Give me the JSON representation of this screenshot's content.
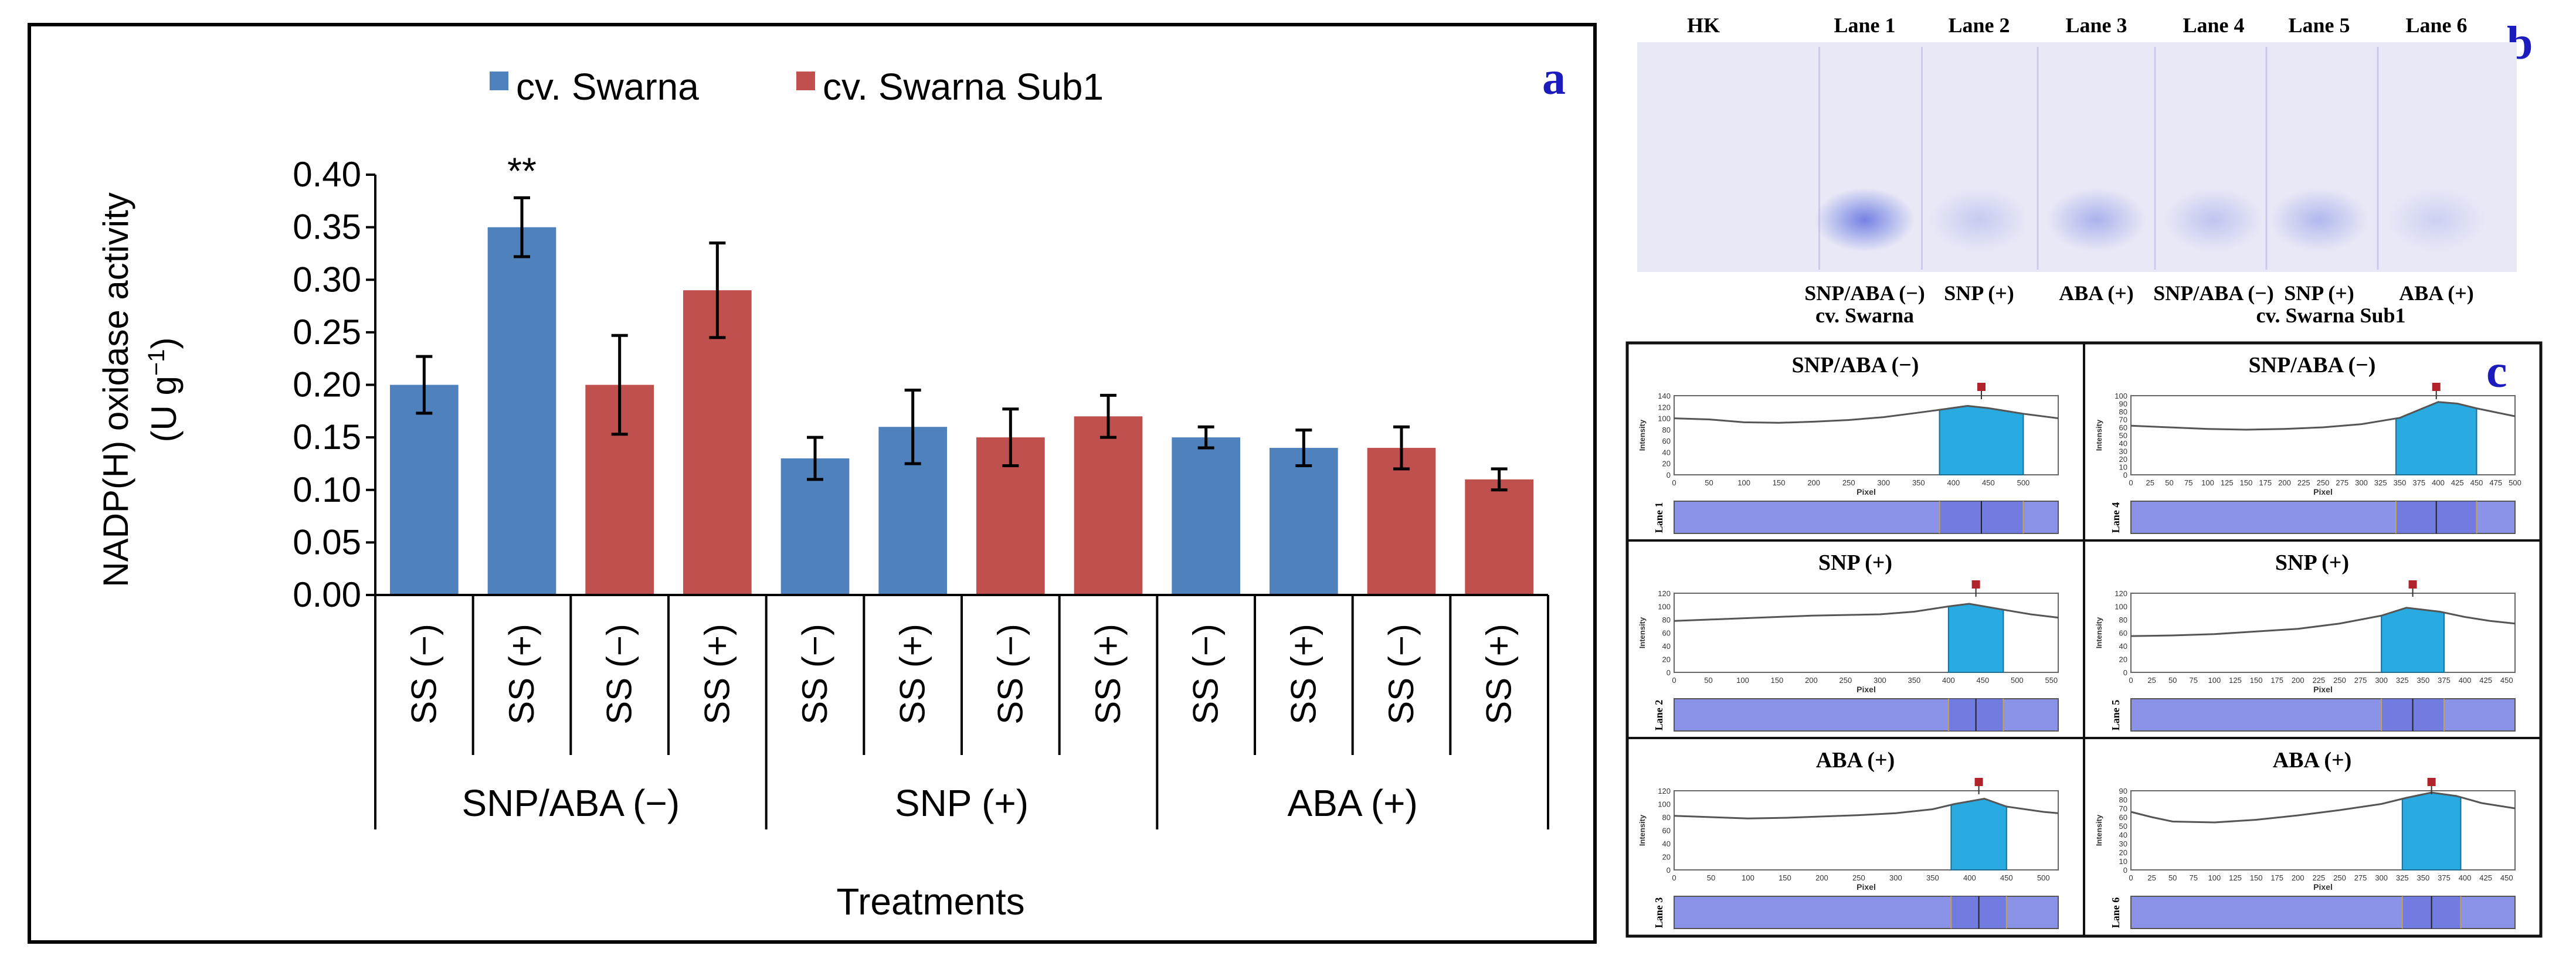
{
  "colors": {
    "swarna": "#4f81bd",
    "sub1": "#c0504d",
    "panel_label": "#1c1cbe",
    "gel_bg": "#e8e9f6",
    "gel_band": "#5f6fe0",
    "profile_fill": "#29abe2",
    "strip_bg": "#8a93e8",
    "marker": "#b0232a"
  },
  "chart_data": [
    {
      "type": "bar",
      "panel": "a",
      "title": "",
      "legend": [
        "cv. Swarna",
        "cv. Swarna Sub1"
      ],
      "legend_position": "top",
      "ylabel_line1": "NADP(H) oxidase activity",
      "ylabel_line2": "(U g",
      "ylabel_sup": "−1",
      "ylabel_close": ")",
      "xlabel": "Treatments",
      "ylim": [
        0,
        0.4
      ],
      "yticks": [
        "0.00",
        "0.05",
        "0.10",
        "0.15",
        "0.20",
        "0.25",
        "0.30",
        "0.35",
        "0.40"
      ],
      "categories": [
        "SS (−)",
        "SS (+)",
        "SS (−)",
        "SS (+)",
        "SS (−)",
        "SS (+)",
        "SS (−)",
        "SS (+)",
        "SS (−)",
        "SS (+)",
        "SS (−)",
        "SS (+)"
      ],
      "groups": [
        "SNP/ABA (−)",
        "SNP (+)",
        "ABA (+)"
      ],
      "series_of_bar": [
        "cv. Swarna",
        "cv. Swarna",
        "cv. Swarna Sub1",
        "cv. Swarna Sub1",
        "cv. Swarna",
        "cv. Swarna",
        "cv. Swarna Sub1",
        "cv. Swarna Sub1",
        "cv. Swarna",
        "cv. Swarna",
        "cv. Swarna Sub1",
        "cv. Swarna Sub1"
      ],
      "values": [
        0.2,
        0.35,
        0.2,
        0.29,
        0.13,
        0.16,
        0.15,
        0.17,
        0.15,
        0.14,
        0.14,
        0.11
      ],
      "errors": [
        0.027,
        0.028,
        0.047,
        0.045,
        0.02,
        0.035,
        0.027,
        0.02,
        0.01,
        0.017,
        0.02,
        0.01
      ],
      "annotations": [
        {
          "bar": 1,
          "text": "**"
        }
      ]
    },
    {
      "type": "other",
      "panel": "b",
      "description_kind": "gel",
      "lane_headers": [
        "HK",
        "Lane 1",
        "Lane 2",
        "Lane 3",
        "Lane 4",
        "Lane 5",
        "Lane 6"
      ],
      "lane_labels": [
        "SNP/ABA (−)",
        "SNP (+)",
        "ABA (+)",
        "SNP/ABA (−)",
        "SNP (+)",
        "ABA (+)"
      ],
      "cultivar_labels": [
        "cv. Swarna",
        "cv. Swarna Sub1"
      ],
      "band_intensity": [
        0.85,
        0.25,
        0.45,
        0.3,
        0.4,
        0.2
      ]
    },
    {
      "type": "line",
      "panel": "c",
      "ylabel": "Intensity",
      "xlabel": "Pixel",
      "plots": [
        {
          "title": "SNP/ABA (−)",
          "lane": "Lane 1",
          "yticks": [
            "0",
            "20",
            "40",
            "60",
            "80",
            "100",
            "120",
            "140"
          ],
          "xticks": [
            "0",
            "50",
            "100",
            "150",
            "200",
            "250",
            "300",
            "350",
            "400",
            "450",
            "500"
          ],
          "xmax": 550,
          "ymax": 140,
          "x": [
            0,
            50,
            100,
            150,
            200,
            250,
            300,
            350,
            380,
            420,
            450,
            500,
            550
          ],
          "y": [
            100,
            98,
            93,
            92,
            94,
            97,
            102,
            110,
            115,
            122,
            118,
            108,
            100
          ],
          "peak_from": 380,
          "peak_to": 500
        },
        {
          "title": "SNP/ABA (−)",
          "lane": "Lane 4",
          "yticks": [
            "0",
            "10",
            "20",
            "30",
            "40",
            "50",
            "60",
            "70",
            "80",
            "90",
            "100"
          ],
          "xticks": [
            "0",
            "25",
            "50",
            "75",
            "100",
            "125",
            "150",
            "175",
            "200",
            "225",
            "250",
            "275",
            "300",
            "325",
            "350",
            "375",
            "400",
            "425",
            "450",
            "475",
            "500"
          ],
          "xmax": 500,
          "ymax": 100,
          "x": [
            0,
            50,
            100,
            150,
            200,
            250,
            300,
            350,
            375,
            400,
            425,
            450,
            500
          ],
          "y": [
            62,
            60,
            58,
            57,
            58,
            60,
            64,
            72,
            82,
            92,
            90,
            84,
            74
          ],
          "peak_from": 345,
          "peak_to": 450
        },
        {
          "title": "SNP (+)",
          "lane": "Lane 2",
          "yticks": [
            "0",
            "20",
            "40",
            "60",
            "80",
            "100",
            "120"
          ],
          "xticks": [
            "0",
            "50",
            "100",
            "150",
            "200",
            "250",
            "300",
            "350",
            "400",
            "450",
            "500",
            "550"
          ],
          "xmax": 560,
          "ymax": 120,
          "x": [
            0,
            50,
            100,
            150,
            200,
            250,
            300,
            350,
            400,
            430,
            480,
            520,
            560
          ],
          "y": [
            78,
            80,
            82,
            84,
            86,
            87,
            88,
            92,
            100,
            104,
            95,
            88,
            83
          ],
          "peak_from": 400,
          "peak_to": 480
        },
        {
          "title": "SNP (+)",
          "lane": "Lane 5",
          "yticks": [
            "0",
            "20",
            "40",
            "60",
            "80",
            "100",
            "120"
          ],
          "xticks": [
            "0",
            "25",
            "50",
            "75",
            "100",
            "125",
            "150",
            "175",
            "200",
            "225",
            "250",
            "275",
            "300",
            "325",
            "350",
            "375",
            "400",
            "425",
            "450"
          ],
          "xmax": 460,
          "ymax": 120,
          "x": [
            0,
            50,
            100,
            150,
            200,
            250,
            300,
            330,
            370,
            400,
            430,
            460
          ],
          "y": [
            55,
            56,
            58,
            62,
            66,
            74,
            86,
            98,
            92,
            84,
            78,
            74
          ],
          "peak_from": 300,
          "peak_to": 375
        },
        {
          "title": "ABA (+)",
          "lane": "Lane 3",
          "yticks": [
            "0",
            "20",
            "40",
            "60",
            "80",
            "100",
            "120"
          ],
          "xticks": [
            "0",
            "50",
            "100",
            "150",
            "200",
            "250",
            "300",
            "350",
            "400",
            "450",
            "500"
          ],
          "xmax": 520,
          "ymax": 120,
          "x": [
            0,
            50,
            100,
            150,
            200,
            250,
            300,
            350,
            380,
            420,
            450,
            500,
            520
          ],
          "y": [
            82,
            80,
            78,
            79,
            81,
            83,
            86,
            92,
            100,
            108,
            96,
            88,
            86
          ],
          "peak_from": 375,
          "peak_to": 450
        },
        {
          "title": "ABA (+)",
          "lane": "Lane 6",
          "yticks": [
            "0",
            "10",
            "20",
            "30",
            "40",
            "50",
            "60",
            "70",
            "80",
            "90"
          ],
          "xticks": [
            "0",
            "25",
            "50",
            "75",
            "100",
            "125",
            "150",
            "175",
            "200",
            "225",
            "250",
            "275",
            "300",
            "325",
            "350",
            "375",
            "400",
            "425",
            "450"
          ],
          "xmax": 460,
          "ymax": 90,
          "x": [
            0,
            25,
            50,
            100,
            150,
            200,
            250,
            300,
            330,
            360,
            390,
            420,
            460
          ],
          "y": [
            66,
            60,
            55,
            54,
            57,
            62,
            68,
            75,
            82,
            88,
            84,
            76,
            70
          ],
          "peak_from": 325,
          "peak_to": 395
        }
      ]
    }
  ],
  "panel_labels": {
    "a": "a",
    "b": "b",
    "c": "c"
  }
}
